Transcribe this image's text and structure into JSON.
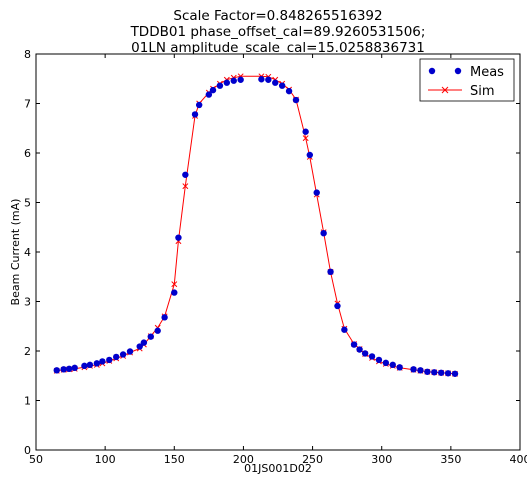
{
  "chart_data": {
    "type": "scatter",
    "title": [
      "Scale Factor=0.848265516392",
      "TDDB01 phase_offset_cal=89.9260531506;",
      "01LN amplitude_scale_cal=15.0258836731"
    ],
    "xlabel": "01JS001D02",
    "ylabel": "Beam Current (mA)",
    "xlim": [
      50,
      400
    ],
    "ylim": [
      0,
      8
    ],
    "xticks": [
      50,
      100,
      150,
      200,
      250,
      300,
      350,
      400
    ],
    "yticks": [
      0,
      1,
      2,
      3,
      4,
      5,
      6,
      7,
      8
    ],
    "legend_position": "top-right",
    "grid": false,
    "series": [
      {
        "name": "Meas",
        "style": "markers",
        "marker": "circle",
        "color": "#0000cc",
        "x": [
          65,
          70,
          74,
          78,
          85,
          89,
          94,
          98,
          103,
          108,
          113,
          118,
          125,
          128,
          133,
          138,
          143,
          150,
          153,
          158,
          165,
          168,
          175,
          178,
          183,
          188,
          193,
          198,
          213,
          218,
          223,
          228,
          233,
          238,
          245,
          248,
          253,
          258,
          263,
          268,
          273,
          280,
          284,
          288,
          293,
          298,
          303,
          308,
          313,
          323,
          328,
          333,
          338,
          343,
          348,
          353
        ],
        "y": [
          1.61,
          1.63,
          1.64,
          1.66,
          1.7,
          1.72,
          1.75,
          1.79,
          1.82,
          1.88,
          1.93,
          1.99,
          2.09,
          2.17,
          2.29,
          2.41,
          2.68,
          3.18,
          4.29,
          5.56,
          6.78,
          6.97,
          7.18,
          7.27,
          7.36,
          7.42,
          7.46,
          7.48,
          7.49,
          7.48,
          7.42,
          7.36,
          7.25,
          7.07,
          6.43,
          5.96,
          5.2,
          4.38,
          3.6,
          2.91,
          2.43,
          2.13,
          2.03,
          1.95,
          1.89,
          1.82,
          1.76,
          1.72,
          1.67,
          1.63,
          1.61,
          1.58,
          1.57,
          1.56,
          1.55,
          1.54
        ]
      },
      {
        "name": "Sim",
        "style": "line+x",
        "color": "#ff0000",
        "x": [
          65,
          70,
          74,
          78,
          85,
          89,
          94,
          98,
          103,
          108,
          113,
          118,
          125,
          128,
          133,
          138,
          143,
          150,
          153,
          158,
          165,
          168,
          175,
          178,
          183,
          188,
          193,
          198,
          213,
          218,
          223,
          228,
          233,
          238,
          245,
          248,
          253,
          258,
          263,
          268,
          273,
          280,
          284,
          288,
          293,
          298,
          303,
          308,
          313,
          323,
          328,
          333,
          338,
          343,
          348,
          353
        ],
        "y": [
          1.6,
          1.62,
          1.63,
          1.64,
          1.67,
          1.7,
          1.72,
          1.75,
          1.8,
          1.85,
          1.9,
          1.97,
          2.05,
          2.13,
          2.3,
          2.47,
          2.7,
          3.35,
          4.22,
          5.33,
          6.75,
          7.0,
          7.22,
          7.3,
          7.4,
          7.48,
          7.52,
          7.55,
          7.55,
          7.54,
          7.48,
          7.4,
          7.28,
          7.08,
          6.3,
          5.92,
          5.16,
          4.4,
          3.6,
          2.96,
          2.45,
          2.14,
          2.04,
          1.94,
          1.86,
          1.79,
          1.74,
          1.7,
          1.66,
          1.62,
          1.6,
          1.58,
          1.57,
          1.56,
          1.55,
          1.54
        ]
      }
    ]
  }
}
